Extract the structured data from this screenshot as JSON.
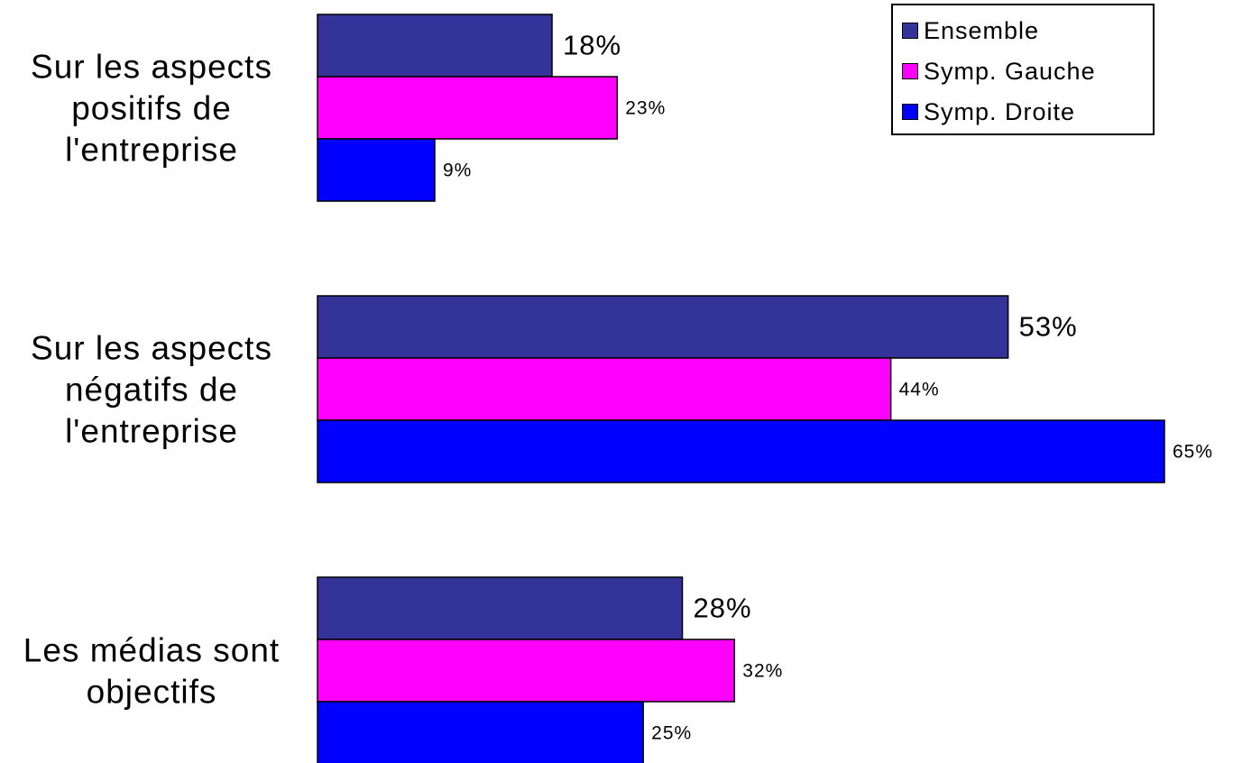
{
  "chart_data": {
    "type": "bar",
    "orientation": "horizontal",
    "categories": [
      [
        "Sur les aspects",
        "positifs de",
        "l'entreprise"
      ],
      [
        "Sur les aspects",
        "négatifs de",
        "l'entreprise"
      ],
      [
        "Les médias sont",
        "objectifs"
      ]
    ],
    "series": [
      {
        "name": "Ensemble",
        "color": "#333399",
        "values": [
          18,
          53,
          28
        ],
        "labels": [
          "18%",
          "53%",
          "28%"
        ]
      },
      {
        "name": "Symp. Gauche",
        "color": "#FF00FF",
        "values": [
          23,
          44,
          32
        ],
        "labels": [
          "23%",
          "44%",
          "32%"
        ]
      },
      {
        "name": "Symp. Droite",
        "color": "#0000FF",
        "values": [
          9,
          65,
          25
        ],
        "labels": [
          "9%",
          "65%",
          "25%"
        ]
      }
    ],
    "xlim": [
      0,
      65
    ],
    "grid": false,
    "legend_position": "top-right"
  }
}
